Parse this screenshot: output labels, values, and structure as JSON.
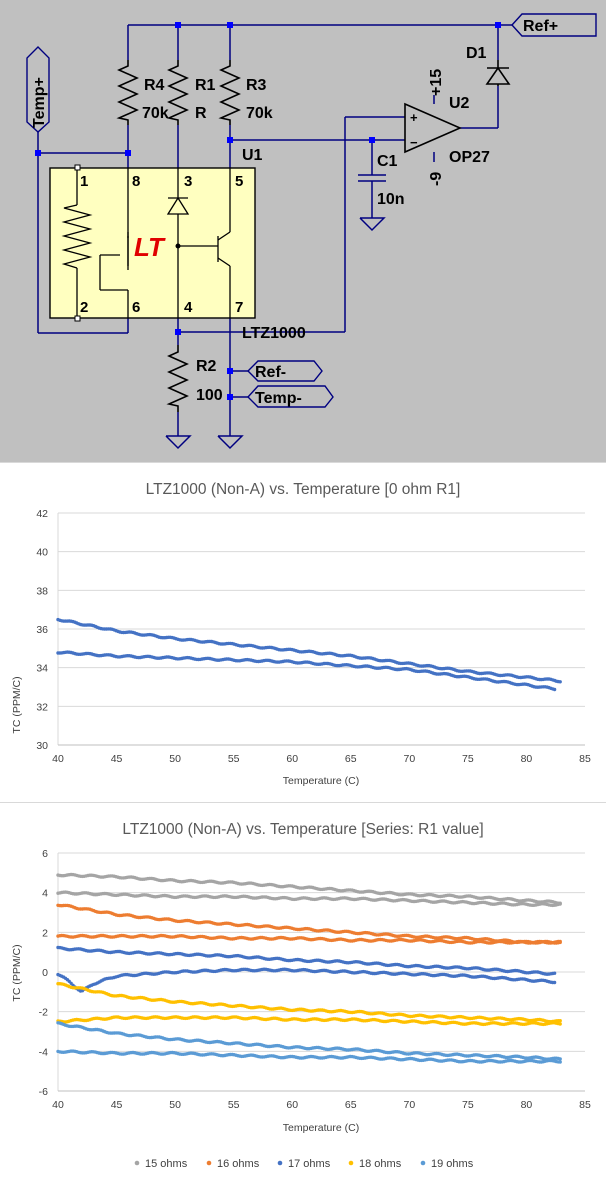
{
  "schematic": {
    "net_labels": {
      "ref_plus": "Ref+",
      "ref_minus": "Ref-",
      "temp_plus": "Temp+",
      "temp_minus": "Temp-"
    },
    "components": {
      "r4": {
        "name": "R4",
        "value": "70k"
      },
      "r1": {
        "name": "R1",
        "value": "R"
      },
      "r3": {
        "name": "R3",
        "value": "70k"
      },
      "r2": {
        "name": "R2",
        "value": "100"
      },
      "c1": {
        "name": "C1",
        "value": "10n"
      },
      "d1": {
        "name": "D1"
      },
      "u1": {
        "name": "U1",
        "part": "LTZ1000"
      },
      "u2": {
        "name": "U2",
        "part": "OP27",
        "vpos": "+15",
        "vneg": "-9",
        "plus": "+",
        "minus": "−"
      }
    },
    "pins": [
      "1",
      "8",
      "3",
      "5",
      "2",
      "6",
      "4",
      "7"
    ],
    "logo": "LT"
  },
  "chart_data": [
    {
      "type": "scatter",
      "title": "LTZ1000 (Non-A) vs. Temperature [0 ohm R1]",
      "xlabel": "Temperature (C)",
      "ylabel": "TC (PPM/C)",
      "xlim": [
        40,
        85
      ],
      "ylim": [
        30,
        42
      ],
      "xticks": [
        40,
        45,
        50,
        55,
        60,
        65,
        70,
        75,
        80,
        85
      ],
      "yticks": [
        30,
        32,
        34,
        36,
        38,
        40,
        42
      ],
      "grid": "horizontal",
      "legend": "none",
      "series": [
        {
          "color": "#4472c4",
          "x": [
            40,
            45,
            50,
            55,
            60,
            65,
            70,
            75,
            80,
            83
          ],
          "y": [
            36.5,
            35.9,
            35.5,
            35.2,
            34.9,
            34.6,
            34.2,
            33.8,
            33.5,
            33.3
          ]
        },
        {
          "color": "#4472c4",
          "x": [
            40,
            45,
            50,
            55,
            60,
            65,
            70,
            75,
            80,
            82.5
          ],
          "y": [
            34.8,
            34.6,
            34.5,
            34.4,
            34.3,
            34.1,
            33.9,
            33.5,
            33.1,
            32.9
          ]
        }
      ]
    },
    {
      "type": "scatter",
      "title": "LTZ1000 (Non-A) vs. Temperature [Series: R1 value]",
      "xlabel": "Temperature (C)",
      "ylabel": "TC (PPM/C)",
      "xlim": [
        40,
        85
      ],
      "ylim": [
        -6,
        6
      ],
      "xticks": [
        40,
        45,
        50,
        55,
        60,
        65,
        70,
        75,
        80,
        85
      ],
      "yticks": [
        -6,
        -4,
        -2,
        0,
        2,
        4,
        6
      ],
      "grid": "horizontal",
      "legend": "bottom",
      "series": [
        {
          "name": "15 ohms",
          "color": "#a5a5a5",
          "lines": [
            {
              "x": [
                40,
                45,
                50,
                55,
                60,
                65,
                70,
                75,
                80,
                83
              ],
              "y": [
                4.9,
                4.8,
                4.6,
                4.5,
                4.3,
                4.1,
                3.9,
                3.8,
                3.6,
                3.5
              ]
            },
            {
              "x": [
                40,
                45,
                50,
                55,
                60,
                65,
                70,
                75,
                80,
                83
              ],
              "y": [
                4.0,
                3.9,
                3.8,
                3.8,
                3.7,
                3.7,
                3.6,
                3.5,
                3.4,
                3.4
              ]
            }
          ]
        },
        {
          "name": "16 ohms",
          "color": "#ed7d31",
          "lines": [
            {
              "x": [
                40,
                45,
                50,
                55,
                60,
                65,
                70,
                75,
                80,
                83
              ],
              "y": [
                3.4,
                2.9,
                2.6,
                2.4,
                2.2,
                2.0,
                1.8,
                1.7,
                1.5,
                1.5
              ]
            },
            {
              "x": [
                40,
                45,
                50,
                55,
                60,
                65,
                70,
                75,
                80,
                83
              ],
              "y": [
                1.8,
                1.8,
                1.8,
                1.7,
                1.7,
                1.6,
                1.6,
                1.5,
                1.5,
                1.5
              ]
            }
          ]
        },
        {
          "name": "17 ohms",
          "color": "#4472c4",
          "lines": [
            {
              "x": [
                40,
                41,
                42,
                43,
                45,
                50,
                55,
                60,
                65,
                70,
                75,
                80,
                82.5
              ],
              "y": [
                -0.1,
                -0.5,
                -1.0,
                -0.6,
                -0.2,
                0.0,
                0.1,
                0.1,
                0.0,
                -0.1,
                -0.2,
                -0.4,
                -0.5
              ]
            },
            {
              "x": [
                40,
                45,
                50,
                55,
                60,
                65,
                70,
                75,
                80,
                82.5
              ],
              "y": [
                1.2,
                1.0,
                0.9,
                0.8,
                0.6,
                0.5,
                0.3,
                0.2,
                0.0,
                -0.1
              ]
            }
          ]
        },
        {
          "name": "18 ohms",
          "color": "#ffc000",
          "lines": [
            {
              "x": [
                40,
                45,
                50,
                55,
                60,
                65,
                70,
                75,
                80,
                83
              ],
              "y": [
                -0.6,
                -1.2,
                -1.5,
                -1.7,
                -1.9,
                -2.0,
                -2.2,
                -2.3,
                -2.4,
                -2.5
              ]
            },
            {
              "x": [
                40,
                45,
                50,
                55,
                60,
                65,
                70,
                75,
                80,
                83
              ],
              "y": [
                -2.5,
                -2.3,
                -2.3,
                -2.3,
                -2.4,
                -2.4,
                -2.5,
                -2.6,
                -2.6,
                -2.6
              ]
            }
          ]
        },
        {
          "name": "19 ohms",
          "color": "#5b9bd5",
          "lines": [
            {
              "x": [
                40,
                45,
                50,
                55,
                60,
                65,
                70,
                75,
                80,
                83
              ],
              "y": [
                -2.6,
                -3.1,
                -3.4,
                -3.6,
                -3.8,
                -3.9,
                -4.1,
                -4.2,
                -4.3,
                -4.4
              ]
            },
            {
              "x": [
                40,
                45,
                50,
                55,
                60,
                65,
                70,
                75,
                80,
                83
              ],
              "y": [
                -4.0,
                -4.1,
                -4.1,
                -4.2,
                -4.3,
                -4.3,
                -4.4,
                -4.5,
                -4.5,
                -4.5
              ]
            }
          ]
        }
      ]
    }
  ]
}
